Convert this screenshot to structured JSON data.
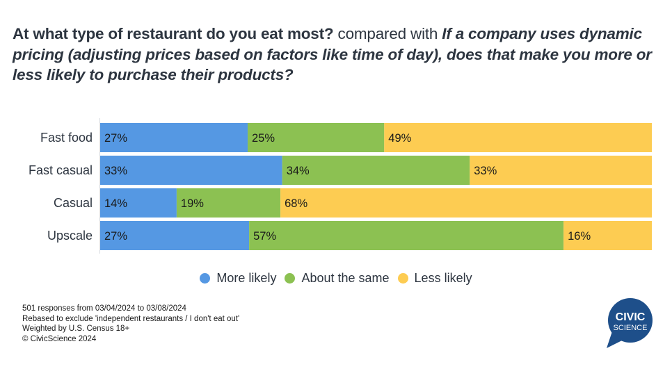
{
  "title": {
    "question1": "At what type of restaurant do you eat most?",
    "connector": "compared with",
    "question2": "If a company uses dynamic pricing (adjusting prices based on factors like time of day), does that make you more or less likely to purchase their products?"
  },
  "chart_data": {
    "type": "bar",
    "orientation": "horizontal",
    "stacked": true,
    "normalized": true,
    "title": "At what type of restaurant do you eat most? compared with If a company uses dynamic pricing (adjusting prices based on factors like time of day), does that make you more or less likely to purchase their products?",
    "xlabel": "",
    "ylabel": "",
    "xlim": [
      0,
      100
    ],
    "grid": false,
    "legend_position": "bottom-center",
    "categories": [
      "Fast food",
      "Fast casual",
      "Casual",
      "Upscale"
    ],
    "series": [
      {
        "name": "More likely",
        "color": "#5598e3",
        "values": [
          27,
          33,
          14,
          27
        ],
        "labels": [
          "27%",
          "33%",
          "14%",
          "27%"
        ]
      },
      {
        "name": "About the same",
        "color": "#8cc152",
        "values": [
          25,
          34,
          19,
          57
        ],
        "labels": [
          "25%",
          "34%",
          "19%",
          "57%"
        ]
      },
      {
        "name": "Less likely",
        "color": "#fdcc52",
        "values": [
          49,
          33,
          68,
          16
        ],
        "labels": [
          "49%",
          "33%",
          "68%",
          "16%"
        ]
      }
    ]
  },
  "legend": [
    {
      "label": "More likely",
      "color": "#5598e3"
    },
    {
      "label": "About the same",
      "color": "#8cc152"
    },
    {
      "label": "Less likely",
      "color": "#fdcc52"
    }
  ],
  "notes": [
    "501 responses from 03/04/2024 to 03/08/2024",
    "Rebased to exclude 'independent restaurants / I don't eat out'",
    "Weighted by U.S. Census 18+",
    "© CivicScience 2024"
  ],
  "logo": {
    "line1": "CIVIC",
    "line2": "SCIENCE",
    "color": "#1e4f8a"
  }
}
